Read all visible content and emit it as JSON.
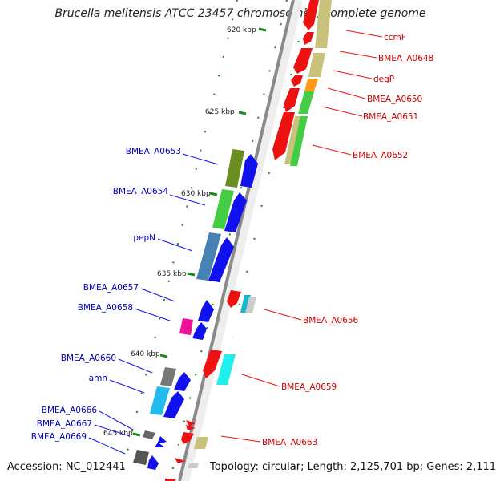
{
  "title": "Brucella melitensis ATCC 23457 chromosome I, complete genome",
  "footer": {
    "accession": "Accession: NC_012441",
    "summary": "Topology: circular; Length: 2,125,701 bp; Genes: 2,111"
  },
  "ticks": [
    {
      "label": "620 kbp"
    },
    {
      "label": "625 kbp"
    },
    {
      "label": "630 kbp"
    },
    {
      "label": "635 kbp"
    },
    {
      "label": "640 kbp"
    },
    {
      "label": "645 kbp"
    }
  ],
  "genes_right": [
    {
      "label": "ccmF"
    },
    {
      "label": "BMEA_A0648"
    },
    {
      "label": "degP"
    },
    {
      "label": "BMEA_A0650"
    },
    {
      "label": "BMEA_A0651"
    },
    {
      "label": "BMEA_A0652"
    },
    {
      "label": "BMEA_A0656"
    },
    {
      "label": "BMEA_A0659"
    },
    {
      "label": "BMEA_A0663"
    }
  ],
  "genes_left": [
    {
      "label": "BMEA_A0653"
    },
    {
      "label": "BMEA_A0654"
    },
    {
      "label": "pepN"
    },
    {
      "label": "BMEA_A0657"
    },
    {
      "label": "BMEA_A0658"
    },
    {
      "label": "BMEA_A0660"
    },
    {
      "label": "amn"
    },
    {
      "label": "BMEA_A0666"
    },
    {
      "label": "BMEA_A0667"
    },
    {
      "label": "BMEA_A0669"
    }
  ],
  "colors": {
    "forward_strand": "#ee1111",
    "reverse_strand": "#1111ee",
    "label_right": "#cc0000",
    "label_left": "#0000bb",
    "backbone": "#8a8a8a",
    "tick": "#1a8a1a"
  }
}
